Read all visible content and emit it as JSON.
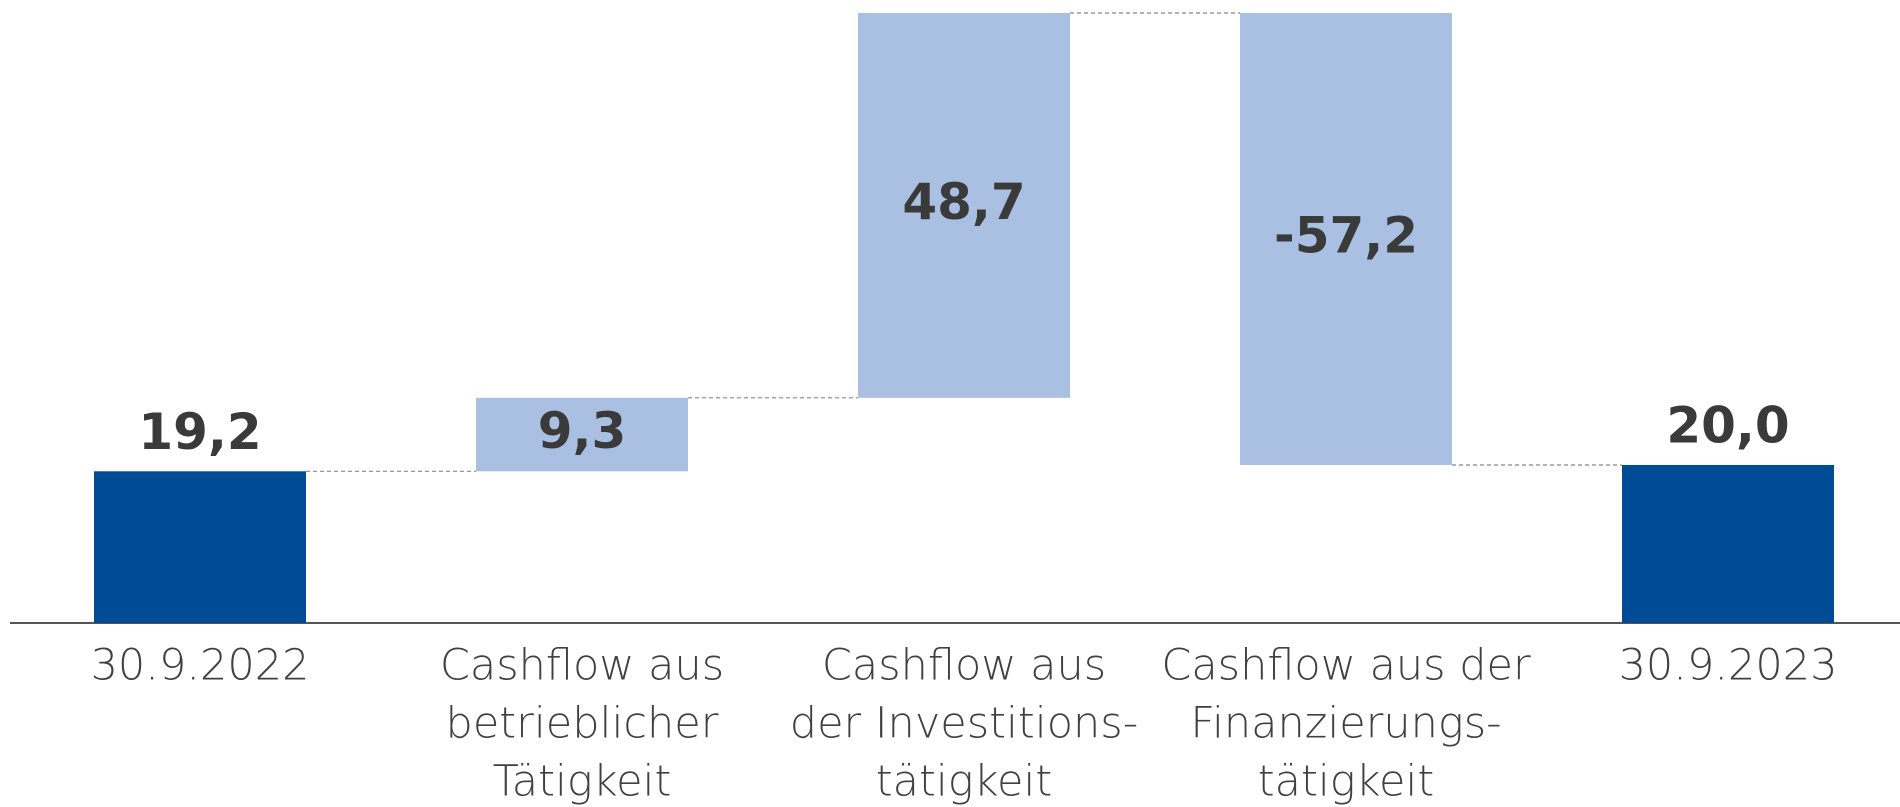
{
  "chart_data": {
    "type": "waterfall",
    "categories": [
      [
        "30.9.2022"
      ],
      [
        "Cashflow aus",
        "betrieblicher",
        "Tätigkeit"
      ],
      [
        "Cashflow aus",
        "der Investitions-",
        "tätigkeit"
      ],
      [
        "Cashflow aus der",
        "Finanzierungs-",
        "tätigkeit"
      ],
      [
        "30.9.2023"
      ]
    ],
    "values": [
      19.2,
      9.3,
      48.7,
      -57.2,
      20.0
    ],
    "value_labels": [
      "19,2",
      "9,3",
      "48,7",
      "-57,2",
      "20,0"
    ],
    "colors": [
      "#004b96",
      "#aac0e3",
      "#aac0e3",
      "#aac0e3",
      "#004b96"
    ]
  }
}
